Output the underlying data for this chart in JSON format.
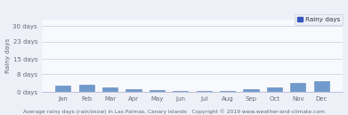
{
  "months": [
    "Jan",
    "Feb",
    "Mar",
    "Apr",
    "May",
    "Jun",
    "Jul",
    "Aug",
    "Sep",
    "Oct",
    "Nov",
    "Dec"
  ],
  "rainy_days": [
    3.0,
    3.2,
    2.2,
    1.5,
    0.7,
    0.4,
    0.3,
    0.4,
    1.5,
    2.2,
    4.2,
    4.8
  ],
  "bar_color": "#7099cc",
  "bar_edge_color": "#6088bb",
  "legend_label": "Rainy days",
  "legend_square_color": "#3355bb",
  "ylabel": "Rainy days",
  "yticks": [
    0,
    8,
    15,
    23,
    30
  ],
  "ytick_labels": [
    "0 days",
    "8 days",
    "15 days",
    "23 days",
    "30 days"
  ],
  "ylim": [
    0,
    33
  ],
  "xlabel_text": "Average rainy days (rain/snow) in Las Palmas, Canary Islands",
  "copyright_text": "Copyright © 2019 www.weather-and-climate.com",
  "background_color": "#eef0f8",
  "plot_bg_color": "#f8f9fd",
  "grid_color": "#d0d4e8",
  "axis_fontsize": 5.0,
  "tick_fontsize": 5.0,
  "ylabel_fontsize": 5.2,
  "xlabel_fontsize": 4.3,
  "legend_fontsize": 5.2
}
